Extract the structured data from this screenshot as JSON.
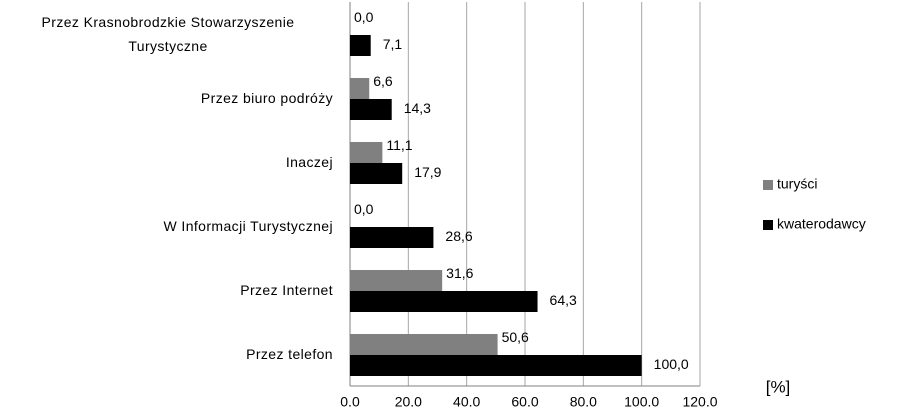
{
  "chart_data": {
    "type": "bar",
    "orientation": "horizontal",
    "categories": [
      "Przez Krasnobrodzkie Stowarzyszenie Turystyczne",
      "Przez biuro podróży",
      "Inaczej",
      "W Informacji Turystycznej",
      "Przez Internet",
      "Przez telefon"
    ],
    "series": [
      {
        "name": "turyści",
        "color": "#808080",
        "values": [
          0.0,
          6.6,
          11.1,
          0.0,
          31.6,
          50.6
        ],
        "value_labels": [
          "0,0",
          "6,6",
          "11,1",
          "0,0",
          "31,6",
          "50,6"
        ]
      },
      {
        "name": "kwaterodawcy",
        "color": "#000000",
        "values": [
          7.1,
          14.3,
          17.9,
          28.6,
          64.3,
          100.0
        ],
        "value_labels": [
          "7,1",
          "14,3",
          "17,9",
          "28,6",
          "64,3",
          "100,0"
        ]
      }
    ],
    "xlim": [
      0,
      120
    ],
    "xticks": [
      {
        "value": 0,
        "label": "0.0"
      },
      {
        "value": 20,
        "label": "20.0"
      },
      {
        "value": 40,
        "label": "40.0"
      },
      {
        "value": 60,
        "label": "60.0"
      },
      {
        "value": 80,
        "label": "80.0"
      },
      {
        "value": 100,
        "label": "100.0"
      },
      {
        "value": 120,
        "label": "120.0"
      }
    ],
    "xlabel": "[%]",
    "grid": true,
    "legend": "right"
  }
}
